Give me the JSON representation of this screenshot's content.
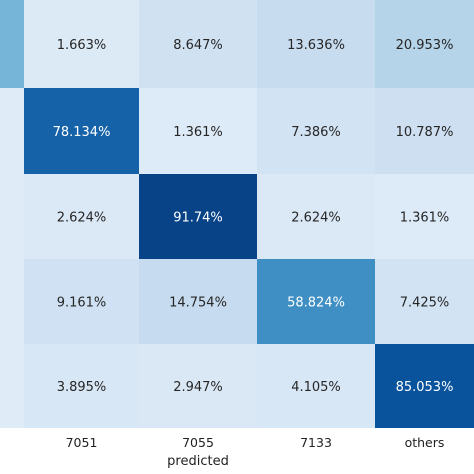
{
  "chart_data": {
    "type": "heatmap",
    "title": "",
    "xlabel": "predicted",
    "ylabel": "",
    "x_categories": [
      "7051",
      "7055",
      "7133",
      "others"
    ],
    "rows": [
      {
        "values": [
          1.663,
          8.647,
          13.636,
          20.953
        ],
        "labels": [
          "1.663%",
          "8.647%",
          "13.636%",
          "20.953%"
        ]
      },
      {
        "values": [
          78.134,
          1.361,
          7.386,
          10.787
        ],
        "labels": [
          "78.134%",
          "1.361%",
          "7.386%",
          "10.787%"
        ]
      },
      {
        "values": [
          2.624,
          91.74,
          2.624,
          1.361
        ],
        "labels": [
          "2.624%",
          "91.74%",
          "2.624%",
          "1.361%"
        ]
      },
      {
        "values": [
          9.161,
          14.754,
          58.824,
          7.425
        ],
        "labels": [
          "9.161%",
          "14.754%",
          "58.824%",
          "7.425%"
        ]
      },
      {
        "values": [
          3.895,
          2.947,
          4.105,
          85.053
        ],
        "labels": [
          "3.895%",
          "2.947%",
          "4.105%",
          "85.053%"
        ]
      }
    ],
    "partial_column_values": [
      40,
      null,
      null,
      null,
      null
    ],
    "value_range": [
      0,
      100
    ],
    "colormap": "Blues",
    "grid": false,
    "legend": "none"
  }
}
